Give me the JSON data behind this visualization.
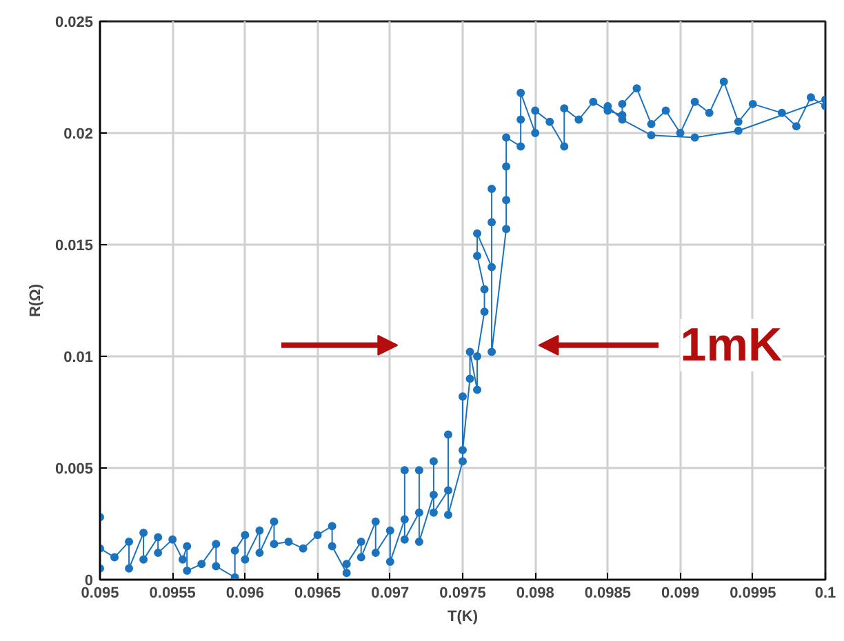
{
  "chart_data": {
    "type": "line",
    "xlabel": "T(K)",
    "ylabel": "R(Ω)",
    "xlim": [
      0.095,
      0.1
    ],
    "ylim": [
      0,
      0.025
    ],
    "xticks": [
      0.095,
      0.0955,
      0.096,
      0.0965,
      0.097,
      0.0975,
      0.098,
      0.0985,
      0.099,
      0.0995,
      {
        "value": 0.1,
        "label": "0.1"
      }
    ],
    "yticks": [
      0,
      0.005,
      0.01,
      0.015,
      0.02,
      0.025
    ],
    "grid": true,
    "marker": "circle",
    "line_style": "solid",
    "annotations": [
      "1mK"
    ],
    "series": [
      {
        "color": "#1c73bd",
        "x": [
          0.095,
          0.095,
          0.095,
          0.0951,
          0.0952,
          0.0952,
          0.0953,
          0.0953,
          0.0954,
          0.0954,
          0.0955,
          0.09557,
          0.0956,
          0.0956,
          0.0957,
          0.0958,
          0.0958,
          0.09593,
          0.09593,
          0.096,
          0.096,
          0.0961,
          0.0961,
          0.0962,
          0.0962,
          0.0963,
          0.0964,
          0.0965,
          0.0966,
          0.0966,
          0.0967,
          0.0967,
          0.0968,
          0.0968,
          0.0969,
          0.0969,
          0.097,
          0.097,
          0.0971,
          0.0971,
          0.0971,
          0.0972,
          0.0972,
          0.0972,
          0.0973,
          0.0973,
          0.0973,
          0.0974,
          0.0974,
          0.0974,
          0.0975,
          0.0975,
          0.0975,
          0.09755,
          0.09755,
          0.0976,
          0.0976,
          0.09765,
          0.09765,
          0.0976,
          0.0976,
          0.0977,
          0.0977,
          0.0977,
          0.0977,
          0.0978,
          0.0978,
          0.0978,
          0.0978,
          0.0979,
          0.0979,
          0.0979,
          0.098,
          0.098,
          0.0981,
          0.0982,
          0.0982,
          0.0983,
          0.0984,
          0.0985,
          0.0986,
          0.0986,
          0.0987,
          0.0988,
          0.0989,
          0.099,
          0.0991,
          0.0992,
          0.0993,
          0.0994,
          0.0995,
          0.0997,
          0.0998,
          0.0999,
          0.1,
          0.1,
          0.0994,
          0.0991,
          0.0988,
          0.0986,
          0.0985
        ],
        "values": [
          0.0028,
          0.0005,
          0.0014,
          0.001,
          0.0017,
          0.0005,
          0.0021,
          0.0009,
          0.0019,
          0.0012,
          0.0018,
          0.0009,
          0.0015,
          0.0004,
          0.0007,
          0.0016,
          0.0006,
          0.0001,
          0.0013,
          0.002,
          0.0009,
          0.0022,
          0.0012,
          0.0026,
          0.0016,
          0.0017,
          0.0014,
          0.002,
          0.0024,
          0.0015,
          0.0003,
          0.0007,
          0.0017,
          0.001,
          0.0026,
          0.0012,
          0.0022,
          0.0008,
          0.0027,
          0.0049,
          0.0018,
          0.003,
          0.0049,
          0.0017,
          0.0038,
          0.0053,
          0.003,
          0.004,
          0.0065,
          0.0029,
          0.0053,
          0.0082,
          0.0058,
          0.009,
          0.0102,
          0.0085,
          0.01,
          0.012,
          0.013,
          0.0145,
          0.0155,
          0.014,
          0.016,
          0.0175,
          0.0102,
          0.0157,
          0.017,
          0.0185,
          0.0198,
          0.0194,
          0.0206,
          0.0218,
          0.02,
          0.021,
          0.0205,
          0.0194,
          0.0211,
          0.0206,
          0.0214,
          0.021,
          0.0208,
          0.0213,
          0.022,
          0.0204,
          0.021,
          0.02,
          0.0214,
          0.0209,
          0.0223,
          0.0205,
          0.0213,
          0.0209,
          0.0203,
          0.0216,
          0.0212,
          0.0215,
          0.0201,
          0.0198,
          0.0199,
          0.0206,
          0.0212
        ]
      }
    ]
  }
}
